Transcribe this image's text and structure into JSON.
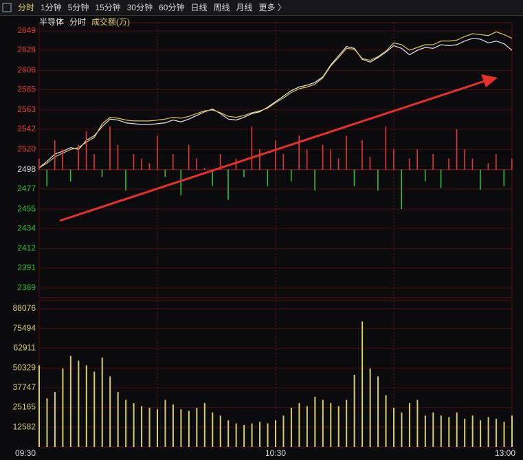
{
  "tabs": [
    "分时",
    "1分钟",
    "5分钟",
    "15分钟",
    "30分钟",
    "60分钟",
    "日线",
    "周线",
    "月线",
    "更多 〉"
  ],
  "chart_data": [
    {
      "type": "line",
      "title": "半导体",
      "x": [
        0,
        2,
        4,
        6,
        8,
        10,
        12,
        14,
        16,
        18,
        20,
        22,
        24,
        26,
        28,
        30,
        32,
        34,
        36,
        38,
        40,
        42,
        44,
        46,
        48,
        50,
        52,
        54,
        56,
        58,
        60,
        62,
        64,
        66,
        68,
        70,
        72,
        74,
        76,
        78,
        80,
        82,
        84,
        86,
        88,
        90,
        92,
        94,
        96,
        98,
        100,
        102,
        104,
        106,
        108,
        110,
        112,
        114,
        116,
        118,
        120
      ],
      "xlim": [
        0,
        120
      ],
      "xticks": [
        {
          "value": 0,
          "label": "09:30"
        },
        {
          "value": 60,
          "label": "10:30"
        },
        {
          "value": 120,
          "label": "13:00"
        }
      ],
      "xgrid": [
        30,
        60,
        90
      ],
      "ylim": [
        2369,
        2649
      ],
      "yticks": [
        2649,
        2628,
        2606,
        2585,
        2563,
        2542,
        2520,
        2498,
        2477,
        2455,
        2434,
        2412,
        2391,
        2369
      ],
      "baseline": 2498,
      "up_color": "#e53935",
      "down_color": "#2fbf3a",
      "series": [
        {
          "name": "分时",
          "color": "#e8e8e8",
          "values": [
            2500,
            2507,
            2515,
            2518,
            2522,
            2520,
            2530,
            2535,
            2545,
            2553,
            2552,
            2549,
            2548,
            2547,
            2547,
            2548,
            2549,
            2552,
            2550,
            2553,
            2557,
            2561,
            2564,
            2559,
            2553,
            2552,
            2555,
            2559,
            2561,
            2566,
            2572,
            2578,
            2584,
            2588,
            2590,
            2593,
            2599,
            2612,
            2622,
            2632,
            2630,
            2618,
            2615,
            2620,
            2626,
            2633,
            2630,
            2623,
            2628,
            2631,
            2630,
            2634,
            2633,
            2634,
            2638,
            2641,
            2640,
            2636,
            2638,
            2635,
            2628
          ]
        },
        {
          "color": "#e0c85a",
          "values": [
            2500,
            2505,
            2512,
            2516,
            2520,
            2522,
            2528,
            2533,
            2548,
            2555,
            2554,
            2552,
            2551,
            2551,
            2551,
            2552,
            2553,
            2555,
            2554,
            2556,
            2559,
            2562,
            2563,
            2560,
            2556,
            2555,
            2557,
            2560,
            2562,
            2565,
            2571,
            2576,
            2582,
            2586,
            2588,
            2591,
            2598,
            2611,
            2620,
            2630,
            2629,
            2619,
            2617,
            2621,
            2627,
            2636,
            2634,
            2628,
            2631,
            2634,
            2634,
            2638,
            2638,
            2639,
            2643,
            2646,
            2645,
            2644,
            2648,
            2645,
            2641
          ]
        },
        {
          "type": "bar",
          "values": [
            2510,
            2480,
            2530,
            2520,
            2485,
            2525,
            2540,
            2515,
            2490,
            2545,
            2525,
            2475,
            2515,
            2510,
            2505,
            2535,
            2490,
            2515,
            2470,
            2525,
            2510,
            2500,
            2480,
            2515,
            2465,
            2510,
            2490,
            2545,
            2520,
            2480,
            2530,
            2515,
            2485,
            2535,
            2520,
            2475,
            2525,
            2520,
            2510,
            2535,
            2480,
            2530,
            2512,
            2475,
            2545,
            2520,
            2455,
            2510,
            2520,
            2485,
            2515,
            2478,
            2510,
            2542,
            2520,
            2510,
            2476,
            2505,
            2515,
            2480,
            2510
          ]
        }
      ]
    },
    {
      "type": "bar",
      "title": "成交额(万)",
      "color": "#d6cf6a",
      "ylim": [
        0,
        88076
      ],
      "yticks": [
        88076,
        75494,
        62911,
        50329,
        37747,
        25165,
        12582
      ],
      "values": [
        52000,
        31000,
        35000,
        50000,
        58000,
        55000,
        52000,
        48000,
        57000,
        45000,
        35000,
        30000,
        28000,
        26000,
        25000,
        24000,
        30000,
        27000,
        24000,
        23000,
        25000,
        28000,
        22000,
        20000,
        17000,
        15000,
        14000,
        15000,
        16000,
        15000,
        17000,
        20000,
        25000,
        28000,
        26000,
        32000,
        30000,
        28000,
        26000,
        30000,
        46000,
        80000,
        50000,
        45000,
        33000,
        25000,
        22000,
        28000,
        30000,
        20000,
        22000,
        20000,
        19000,
        22000,
        18000,
        20000,
        17000,
        19000,
        18000,
        16000,
        20000
      ]
    }
  ]
}
